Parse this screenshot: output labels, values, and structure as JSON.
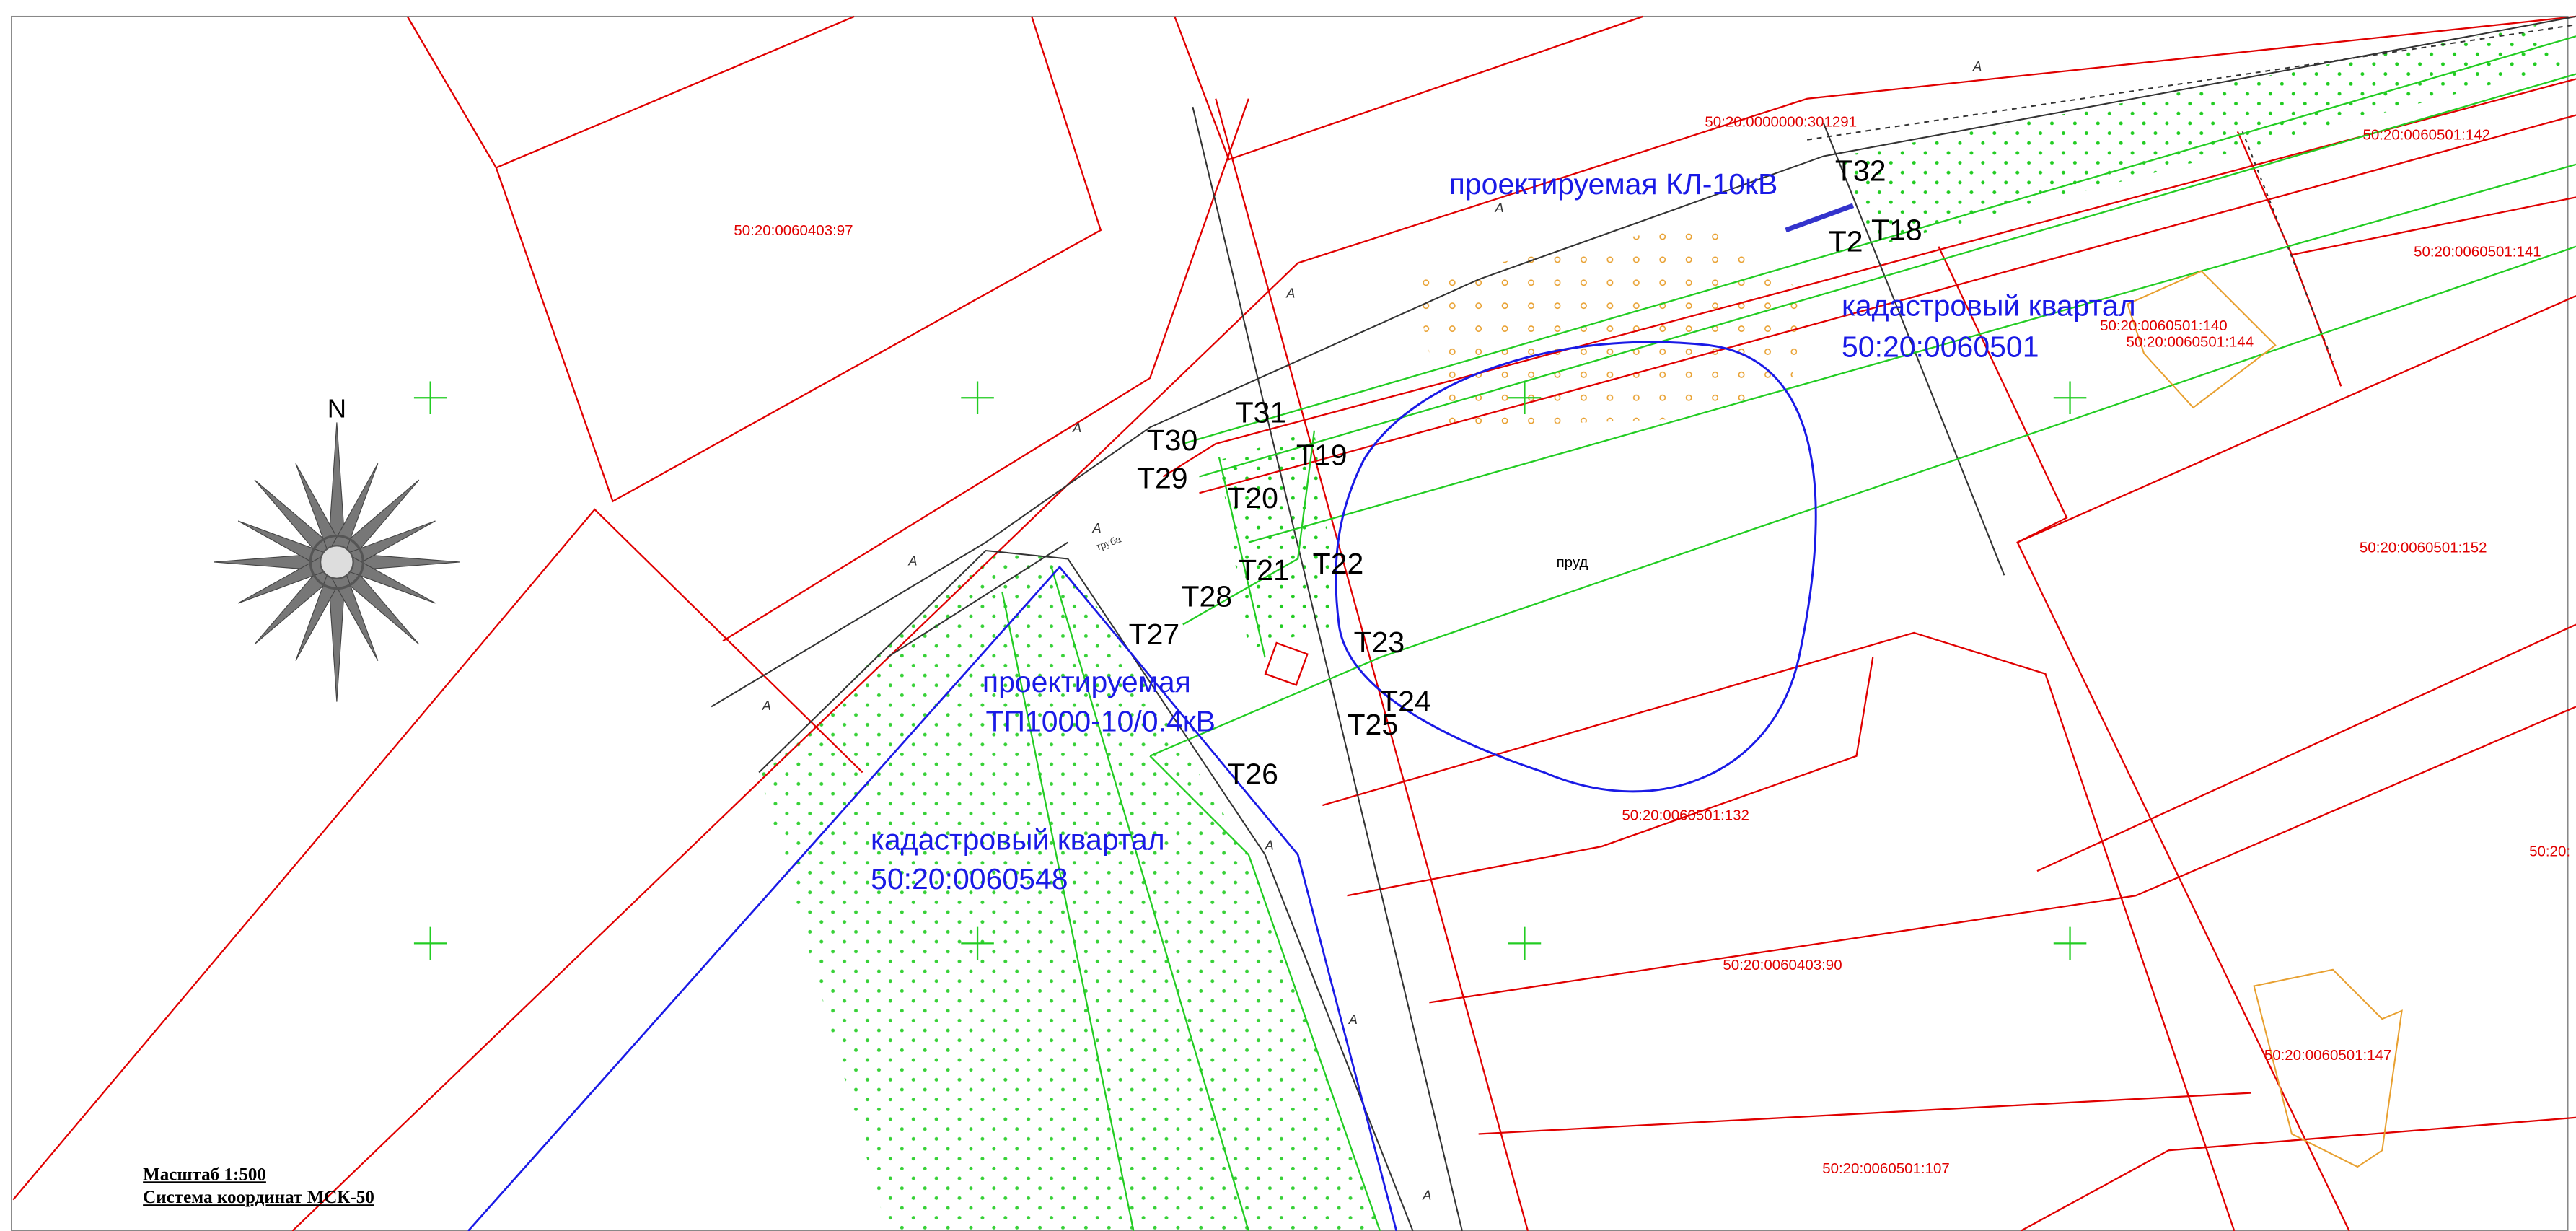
{
  "parcels": [
    "50:20:0060403:97",
    "50:20:0000000:301291",
    "50:20:0060501:142",
    "50:20:0060501:141",
    "50:20:0060501:140",
    "50:20:0060501:144",
    "50:20:0060501:152",
    "50:20:0060501:132",
    "50:20:",
    "50:20:0060403:90",
    "50:20:0060501:147",
    "50:20:0060501:107"
  ],
  "points": [
    "T32",
    "T2",
    "T18",
    "T31",
    "T30",
    "T19",
    "T29",
    "T20",
    "T21",
    "T22",
    "T28",
    "T27",
    "T23",
    "T24",
    "T25",
    "T26"
  ],
  "labels": {
    "cable": "проектируемая КЛ-10кВ",
    "quarter_east": [
      "кадастровый квартал",
      "50:20:0060501"
    ],
    "substation": [
      "проектируемая",
      "ТП1000-10/0.4кВ"
    ],
    "quarter_west": [
      "кадастровый квартал",
      "50:20:0060548"
    ],
    "pond": "пруд",
    "pipe": "труба"
  },
  "road_marks": [
    "A",
    "A",
    "A",
    "A",
    "A",
    "A",
    "A",
    "A",
    "A",
    "A"
  ],
  "north": "N",
  "legend": {
    "scale": "Масштаб 1:500",
    "crs": "Система координат МСК-50"
  }
}
